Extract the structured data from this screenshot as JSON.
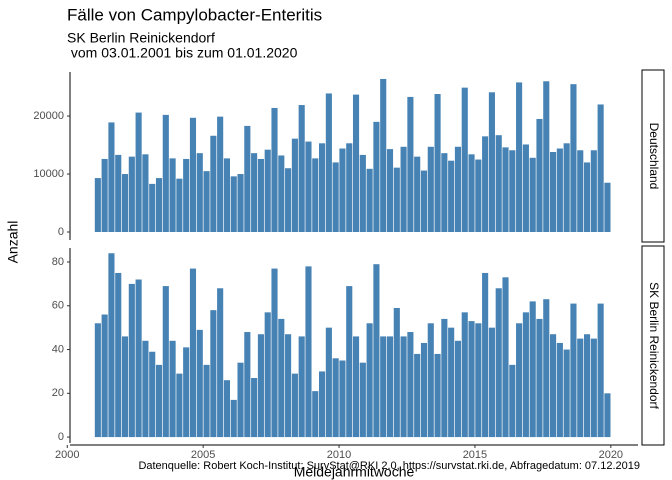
{
  "chart_data": {
    "type": "bar",
    "title": "Fälle von Campylobacter-Enteritis",
    "subtitle": [
      "SK Berlin Reinickendorf",
      " vom 03.01.2001 bis zum 01.01.2020"
    ],
    "xlabel": "Meldejahrmitwoche",
    "ylabel": "Anzahl",
    "caption": "Datenquelle: Robert Koch-Institut: SurvStat@RKI 2.0, https://survstat.rki.de, Abfragedatum: 07.12.2019",
    "color": "#4682b4",
    "xlim": [
      2000.1,
      2021.0
    ],
    "xticks": [
      2000,
      2005,
      2010,
      2015,
      2020
    ],
    "x": [
      2001.125,
      2001.375,
      2001.625,
      2001.875,
      2002.125,
      2002.375,
      2002.625,
      2002.875,
      2003.125,
      2003.375,
      2003.625,
      2003.875,
      2004.125,
      2004.375,
      2004.625,
      2004.875,
      2005.125,
      2005.375,
      2005.625,
      2005.875,
      2006.125,
      2006.375,
      2006.625,
      2006.875,
      2007.125,
      2007.375,
      2007.625,
      2007.875,
      2008.125,
      2008.375,
      2008.625,
      2008.875,
      2009.125,
      2009.375,
      2009.625,
      2009.875,
      2010.125,
      2010.375,
      2010.625,
      2010.875,
      2011.125,
      2011.375,
      2011.625,
      2011.875,
      2012.125,
      2012.375,
      2012.625,
      2012.875,
      2013.125,
      2013.375,
      2013.625,
      2013.875,
      2014.125,
      2014.375,
      2014.625,
      2014.875,
      2015.125,
      2015.375,
      2015.625,
      2015.875,
      2016.125,
      2016.375,
      2016.625,
      2016.875,
      2017.125,
      2017.375,
      2017.625,
      2017.875,
      2018.125,
      2018.375,
      2018.625,
      2018.875,
      2019.125,
      2019.375,
      2019.625,
      2019.875
    ],
    "panels": [
      {
        "strip": "Deutschland",
        "ylim": [
          -1380,
          27600
        ],
        "yticks": [
          0,
          10000,
          20000
        ],
        "values": [
          9300,
          12600,
          18900,
          13300,
          10000,
          13000,
          20600,
          13400,
          8300,
          9300,
          20200,
          12700,
          9200,
          12600,
          19700,
          13600,
          10500,
          16600,
          19900,
          12700,
          9600,
          10000,
          18300,
          13600,
          12600,
          14200,
          21400,
          13200,
          11000,
          16100,
          21900,
          15600,
          12700,
          15300,
          23900,
          12000,
          14400,
          15300,
          23700,
          13300,
          10900,
          19000,
          26400,
          14300,
          11100,
          14700,
          23300,
          13000,
          10600,
          14700,
          23800,
          13600,
          12300,
          14700,
          24900,
          13400,
          12500,
          16500,
          24100,
          16700,
          14600,
          14100,
          25800,
          15100,
          12800,
          19500,
          26000,
          13800,
          14400,
          15300,
          25500,
          14100,
          12000,
          14100,
          22000,
          8500
        ]
      },
      {
        "strip": "SK Berlin Reinickendorf",
        "ylim": [
          -2.7,
          86.4
        ],
        "yticks": [
          0,
          20,
          40,
          60,
          80
        ],
        "values": [
          52,
          56,
          84,
          75,
          46,
          70,
          72,
          44,
          39,
          33,
          69,
          44,
          29,
          41,
          77,
          49,
          33,
          58,
          68,
          26,
          17,
          34,
          48,
          27,
          47,
          57,
          77,
          54,
          47,
          29,
          46,
          78,
          21,
          30,
          50,
          36,
          35,
          69,
          46,
          34,
          52,
          79,
          46,
          46,
          59,
          46,
          48,
          38,
          43,
          52,
          38,
          54,
          50,
          44,
          57,
          53,
          52,
          75,
          50,
          68,
          73,
          33,
          52,
          57,
          62,
          54,
          63,
          47,
          43,
          40,
          61,
          45,
          47,
          45,
          61,
          20
        ]
      }
    ]
  }
}
